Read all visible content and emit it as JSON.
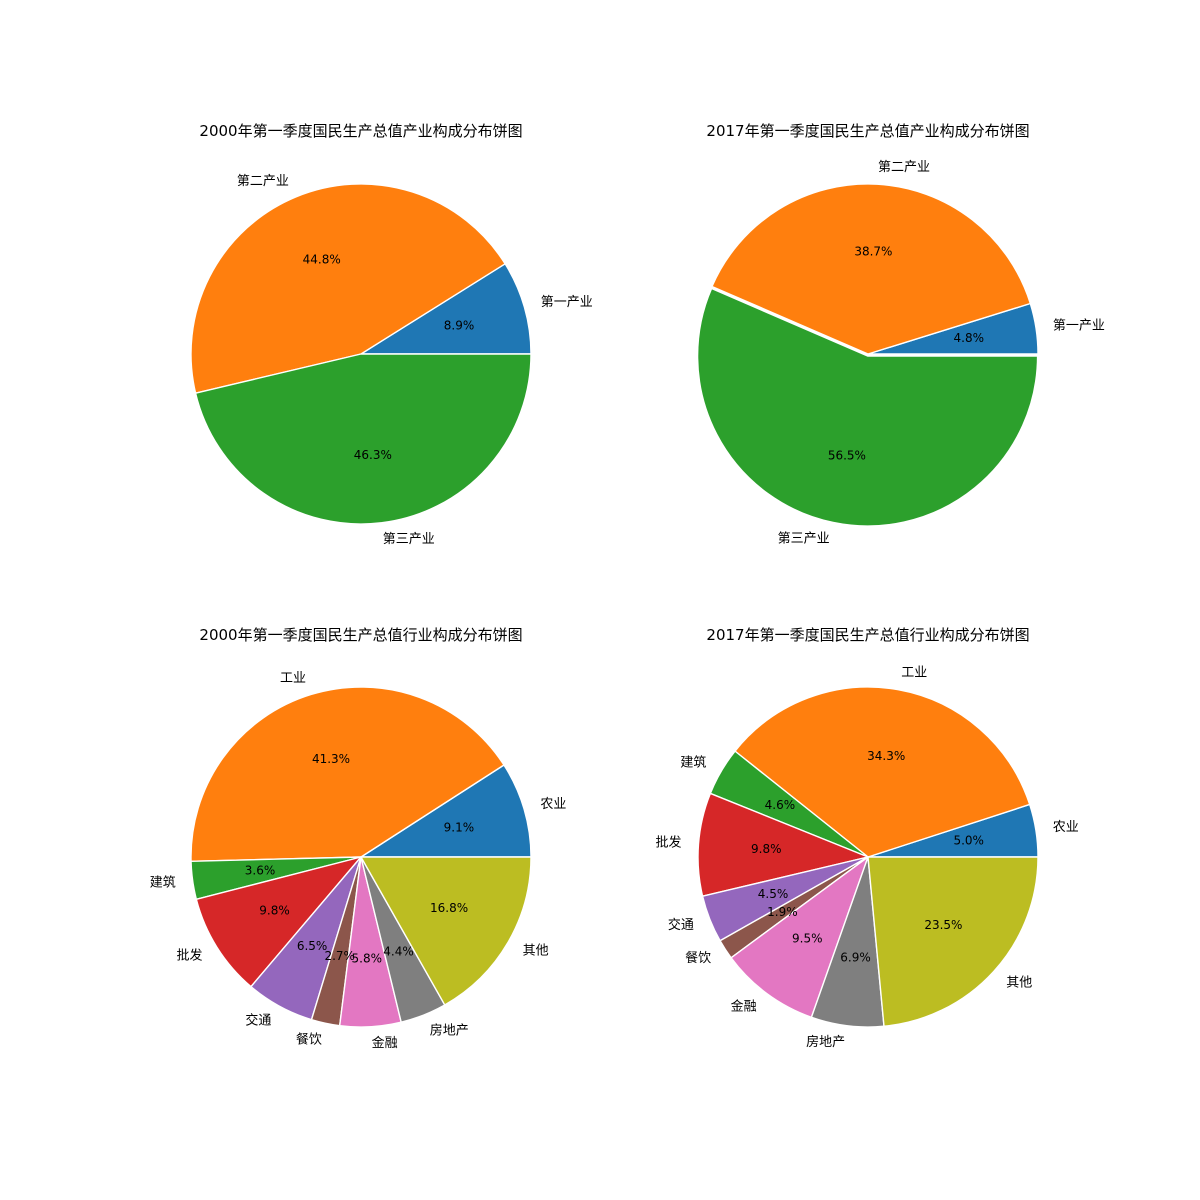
{
  "colors": {
    "palette": [
      "#1f77b4",
      "#ff7f0e",
      "#2ca02c",
      "#d62728",
      "#9467bd",
      "#8c564b",
      "#e377c2",
      "#7f7f7f",
      "#bcbd22"
    ],
    "edge": "#ffffff",
    "text": "#000000",
    "background": "#ffffff"
  },
  "chart_data": [
    {
      "type": "pie",
      "title": "2000年第一季度国民生产总值产业构成分布饼图",
      "labels": [
        "第一产业",
        "第二产业",
        "第三产业"
      ],
      "values": [
        8.9,
        44.8,
        46.3
      ],
      "percent_labels": [
        "8.9%",
        "44.8%",
        "46.3%"
      ],
      "exploded": [
        false,
        false,
        false
      ],
      "legend": "none"
    },
    {
      "type": "pie",
      "title": "2017年第一季度国民生产总值产业构成分布饼图",
      "labels": [
        "第一产业",
        "第二产业",
        "第三产业"
      ],
      "values": [
        4.8,
        38.7,
        56.5
      ],
      "percent_labels": [
        "4.8%",
        "38.7%",
        "56.5%"
      ],
      "exploded": [
        false,
        false,
        true
      ],
      "legend": "none"
    },
    {
      "type": "pie",
      "title": "2000年第一季度国民生产总值行业构成分布饼图",
      "labels": [
        "农业",
        "工业",
        "建筑",
        "批发",
        "交通",
        "餐饮",
        "金融",
        "房地产",
        "其他"
      ],
      "values": [
        9.1,
        41.3,
        3.6,
        9.8,
        6.5,
        2.7,
        5.8,
        4.4,
        16.8
      ],
      "percent_labels": [
        "9.1%",
        "41.3%",
        "3.6%",
        "9.8%",
        "6.5%",
        "2.7%",
        "5.8%",
        "4.4%",
        "16.8%"
      ],
      "exploded": [
        false,
        false,
        false,
        false,
        false,
        false,
        false,
        false,
        false
      ],
      "legend": "none"
    },
    {
      "type": "pie",
      "title": "2017年第一季度国民生产总值行业构成分布饼图",
      "labels": [
        "农业",
        "工业",
        "建筑",
        "批发",
        "交通",
        "餐饮",
        "金融",
        "房地产",
        "其他"
      ],
      "values": [
        5.0,
        34.3,
        4.6,
        9.8,
        4.5,
        1.9,
        9.5,
        6.9,
        23.5
      ],
      "percent_labels": [
        "5.0%",
        "34.3%",
        "4.6%",
        "9.8%",
        "4.5%",
        "1.9%",
        "9.5%",
        "6.9%",
        "23.5%"
      ],
      "exploded": [
        false,
        false,
        false,
        false,
        false,
        false,
        false,
        false,
        false
      ],
      "legend": "none"
    }
  ]
}
